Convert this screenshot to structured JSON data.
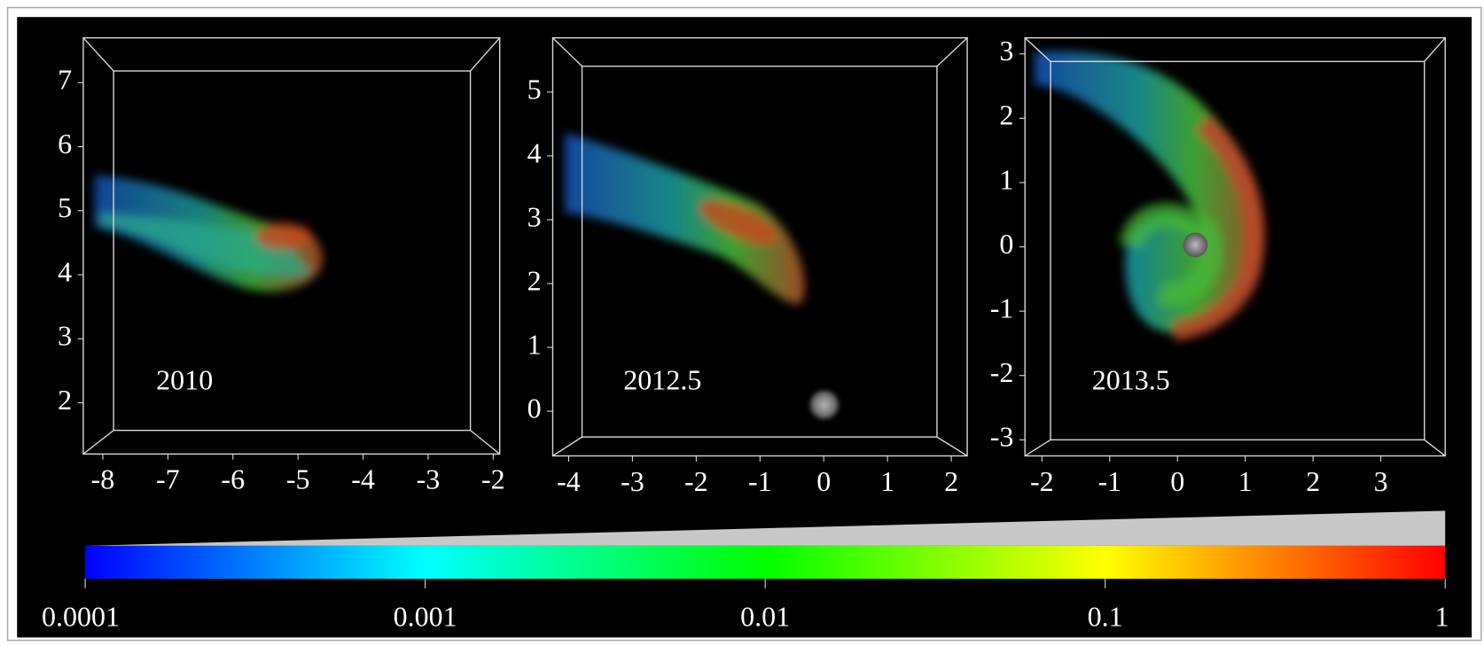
{
  "panels": [
    {
      "label": "2010",
      "xlim": [
        -8.3,
        -1.9
      ],
      "xticks": [
        -8,
        -7,
        -6,
        -5,
        -4,
        -3,
        -2
      ],
      "ylim": [
        1.2,
        7.7
      ],
      "yticks": [
        2,
        3,
        4,
        5,
        6,
        7
      ]
    },
    {
      "label": "2012.5",
      "xlim": [
        -4.25,
        2.25
      ],
      "xticks": [
        -4,
        -3,
        -2,
        -1,
        0,
        1,
        2
      ],
      "ylim": [
        -0.7,
        5.85
      ],
      "yticks": [
        0,
        1,
        2,
        3,
        4,
        5
      ]
    },
    {
      "label": "2013.5",
      "xlim": [
        -2.25,
        3.95
      ],
      "xticks": [
        -2,
        -1,
        0,
        1,
        2,
        3
      ],
      "ylim": [
        -3.25,
        3.25
      ],
      "yticks": [
        -3,
        -2,
        -1,
        0,
        1,
        2,
        3
      ]
    }
  ],
  "colorbar": {
    "scale": "log",
    "lim": [
      0.0001,
      1
    ],
    "ticks": [
      0.0001,
      0.001,
      0.01,
      0.1,
      1
    ],
    "colors": [
      "#0000ff",
      "#00ffff",
      "#00ff00",
      "#ffff00",
      "#ff0000"
    ]
  }
}
